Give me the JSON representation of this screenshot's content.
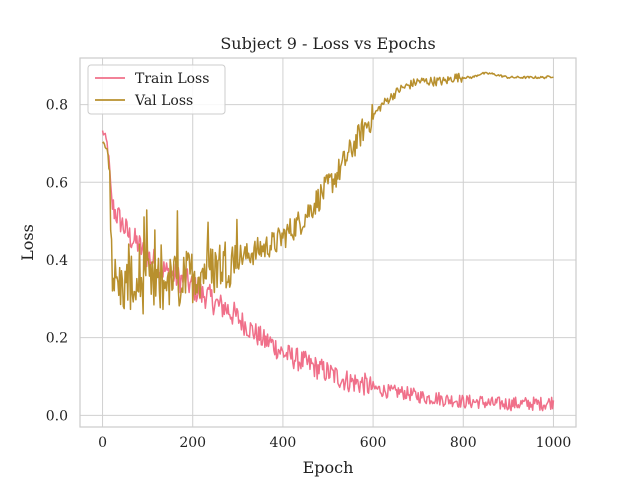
{
  "chart_data": {
    "type": "line",
    "title": "Subject 9 - Loss vs Epochs",
    "xlabel": "Epoch",
    "ylabel": "Loss",
    "xlim": [
      -50,
      1050
    ],
    "ylim": [
      -0.03,
      0.92
    ],
    "xticks": [
      0,
      200,
      400,
      600,
      800,
      1000
    ],
    "yticks": [
      0.0,
      0.2,
      0.4,
      0.6,
      0.8
    ],
    "grid": true,
    "legend_position": "top-left",
    "series": [
      {
        "name": "Train Loss",
        "color": "#f0708a",
        "x": [
          0,
          5,
          10,
          15,
          20,
          25,
          30,
          40,
          50,
          60,
          70,
          80,
          90,
          100,
          110,
          120,
          130,
          140,
          150,
          160,
          170,
          180,
          190,
          200,
          210,
          220,
          230,
          240,
          250,
          260,
          270,
          280,
          290,
          300,
          310,
          320,
          330,
          340,
          350,
          360,
          370,
          380,
          390,
          400,
          420,
          440,
          460,
          480,
          500,
          520,
          540,
          560,
          580,
          600,
          620,
          640,
          660,
          680,
          700,
          720,
          740,
          760,
          780,
          800,
          820,
          840,
          860,
          880,
          900,
          920,
          940,
          960,
          980,
          1000
        ],
        "y": [
          0.73,
          0.72,
          0.7,
          0.65,
          0.55,
          0.53,
          0.52,
          0.5,
          0.48,
          0.46,
          0.45,
          0.44,
          0.42,
          0.41,
          0.4,
          0.39,
          0.38,
          0.37,
          0.36,
          0.36,
          0.35,
          0.35,
          0.34,
          0.33,
          0.32,
          0.31,
          0.31,
          0.3,
          0.29,
          0.28,
          0.28,
          0.27,
          0.26,
          0.25,
          0.24,
          0.23,
          0.22,
          0.21,
          0.2,
          0.19,
          0.19,
          0.18,
          0.17,
          0.16,
          0.15,
          0.14,
          0.13,
          0.12,
          0.11,
          0.1,
          0.09,
          0.085,
          0.08,
          0.07,
          0.065,
          0.06,
          0.06,
          0.055,
          0.05,
          0.045,
          0.045,
          0.04,
          0.04,
          0.035,
          0.035,
          0.035,
          0.03,
          0.03,
          0.03,
          0.03,
          0.03,
          0.03,
          0.03,
          0.035
        ]
      },
      {
        "name": "Val Loss",
        "color": "#b8902e",
        "x": [
          0,
          5,
          10,
          15,
          20,
          25,
          30,
          40,
          50,
          60,
          70,
          80,
          90,
          100,
          110,
          120,
          130,
          140,
          150,
          160,
          170,
          180,
          190,
          200,
          210,
          220,
          230,
          240,
          250,
          260,
          270,
          280,
          290,
          300,
          310,
          320,
          330,
          340,
          350,
          360,
          370,
          380,
          390,
          400,
          420,
          440,
          460,
          480,
          500,
          520,
          540,
          560,
          580,
          600,
          620,
          640,
          660,
          680,
          700,
          720,
          740,
          760,
          780,
          800,
          820,
          840,
          860,
          880,
          900,
          920,
          940,
          960,
          980,
          1000
        ],
        "y": [
          0.71,
          0.7,
          0.69,
          0.62,
          0.4,
          0.35,
          0.34,
          0.33,
          0.33,
          0.34,
          0.34,
          0.33,
          0.33,
          0.34,
          0.33,
          0.32,
          0.33,
          0.34,
          0.34,
          0.35,
          0.34,
          0.35,
          0.36,
          0.36,
          0.37,
          0.37,
          0.38,
          0.37,
          0.38,
          0.39,
          0.39,
          0.4,
          0.4,
          0.41,
          0.41,
          0.41,
          0.42,
          0.42,
          0.43,
          0.43,
          0.44,
          0.44,
          0.45,
          0.46,
          0.48,
          0.5,
          0.53,
          0.56,
          0.59,
          0.62,
          0.66,
          0.7,
          0.74,
          0.77,
          0.8,
          0.82,
          0.84,
          0.85,
          0.86,
          0.86,
          0.86,
          0.86,
          0.87,
          0.87,
          0.87,
          0.88,
          0.88,
          0.875,
          0.87,
          0.87,
          0.87,
          0.87,
          0.87,
          0.873
        ]
      }
    ]
  }
}
